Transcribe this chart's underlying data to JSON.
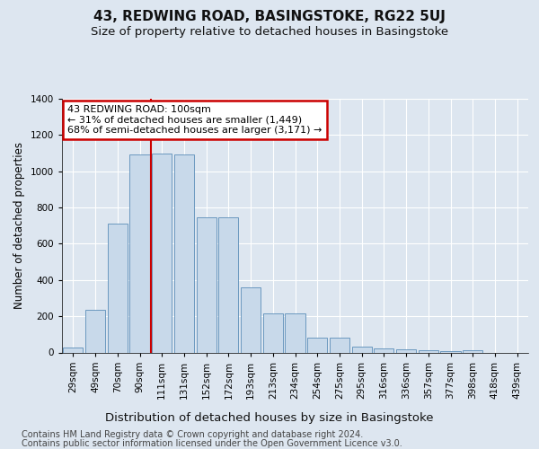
{
  "title": "43, REDWING ROAD, BASINGSTOKE, RG22 5UJ",
  "subtitle": "Size of property relative to detached houses in Basingstoke",
  "xlabel": "Distribution of detached houses by size in Basingstoke",
  "ylabel": "Number of detached properties",
  "categories": [
    "29sqm",
    "49sqm",
    "70sqm",
    "90sqm",
    "111sqm",
    "131sqm",
    "152sqm",
    "172sqm",
    "193sqm",
    "213sqm",
    "234sqm",
    "254sqm",
    "275sqm",
    "295sqm",
    "316sqm",
    "336sqm",
    "357sqm",
    "377sqm",
    "398sqm",
    "418sqm",
    "439sqm"
  ],
  "values": [
    25,
    235,
    710,
    1095,
    1100,
    1095,
    745,
    745,
    360,
    215,
    215,
    80,
    80,
    30,
    20,
    15,
    10,
    5,
    10,
    0,
    0
  ],
  "bar_color": "#c8d9ea",
  "bar_edgecolor": "#5b8db8",
  "redline_x": 3.5,
  "annotation_text": "43 REDWING ROAD: 100sqm\n← 31% of detached houses are smaller (1,449)\n68% of semi-detached houses are larger (3,171) →",
  "annotation_box_edgecolor": "#cc0000",
  "annotation_box_facecolor": "#ffffff",
  "redline_color": "#cc0000",
  "background_color": "#dde6f0",
  "plot_background": "#dde6f0",
  "ylim": [
    0,
    1400
  ],
  "yticks": [
    0,
    200,
    400,
    600,
    800,
    1000,
    1200,
    1400
  ],
  "footer1": "Contains HM Land Registry data © Crown copyright and database right 2024.",
  "footer2": "Contains public sector information licensed under the Open Government Licence v3.0.",
  "title_fontsize": 11,
  "subtitle_fontsize": 9.5,
  "xlabel_fontsize": 9.5,
  "ylabel_fontsize": 8.5,
  "tick_fontsize": 7.5,
  "annotation_fontsize": 8,
  "footer_fontsize": 7
}
